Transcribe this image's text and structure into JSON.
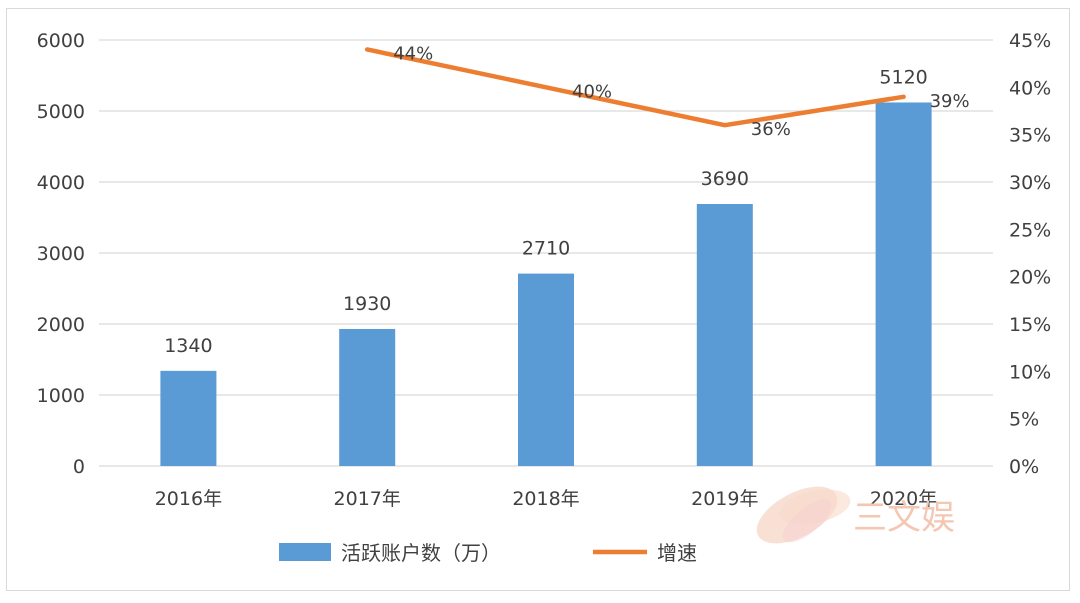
{
  "chart_data": {
    "type": "bar",
    "categories": [
      "2016年",
      "2017年",
      "2018年",
      "2019年",
      "2020年"
    ],
    "series": [
      {
        "name": "活跃账户数（万）",
        "type": "bar",
        "axis": "left",
        "values": [
          1340,
          1930,
          2710,
          3690,
          5120
        ],
        "labels": [
          "1340",
          "1930",
          "2710",
          "3690",
          "5120"
        ],
        "color": "#5b9bd5"
      },
      {
        "name": "增速",
        "type": "line",
        "axis": "right",
        "values": [
          null,
          44,
          40,
          36,
          39
        ],
        "labels": [
          "",
          "44%",
          "40%",
          "36%",
          "39%"
        ],
        "color": "#ed7d31"
      }
    ],
    "y_left": {
      "min": 0,
      "max": 6000,
      "ticks": [
        "0",
        "1000",
        "2000",
        "3000",
        "4000",
        "5000",
        "6000"
      ]
    },
    "y_right": {
      "min": 0,
      "max": 45,
      "ticks": [
        "0%",
        "5%",
        "10%",
        "15%",
        "20%",
        "25%",
        "30%",
        "35%",
        "40%",
        "45%"
      ]
    },
    "grid": true,
    "legend": "bottom",
    "title": "",
    "xlabel": "",
    "ylabel": ""
  },
  "watermark": {
    "text": "三文娱",
    "color": "#f3c7b1"
  },
  "colors": {
    "grid": "#d9d9d9",
    "axis_text": "#404040"
  }
}
